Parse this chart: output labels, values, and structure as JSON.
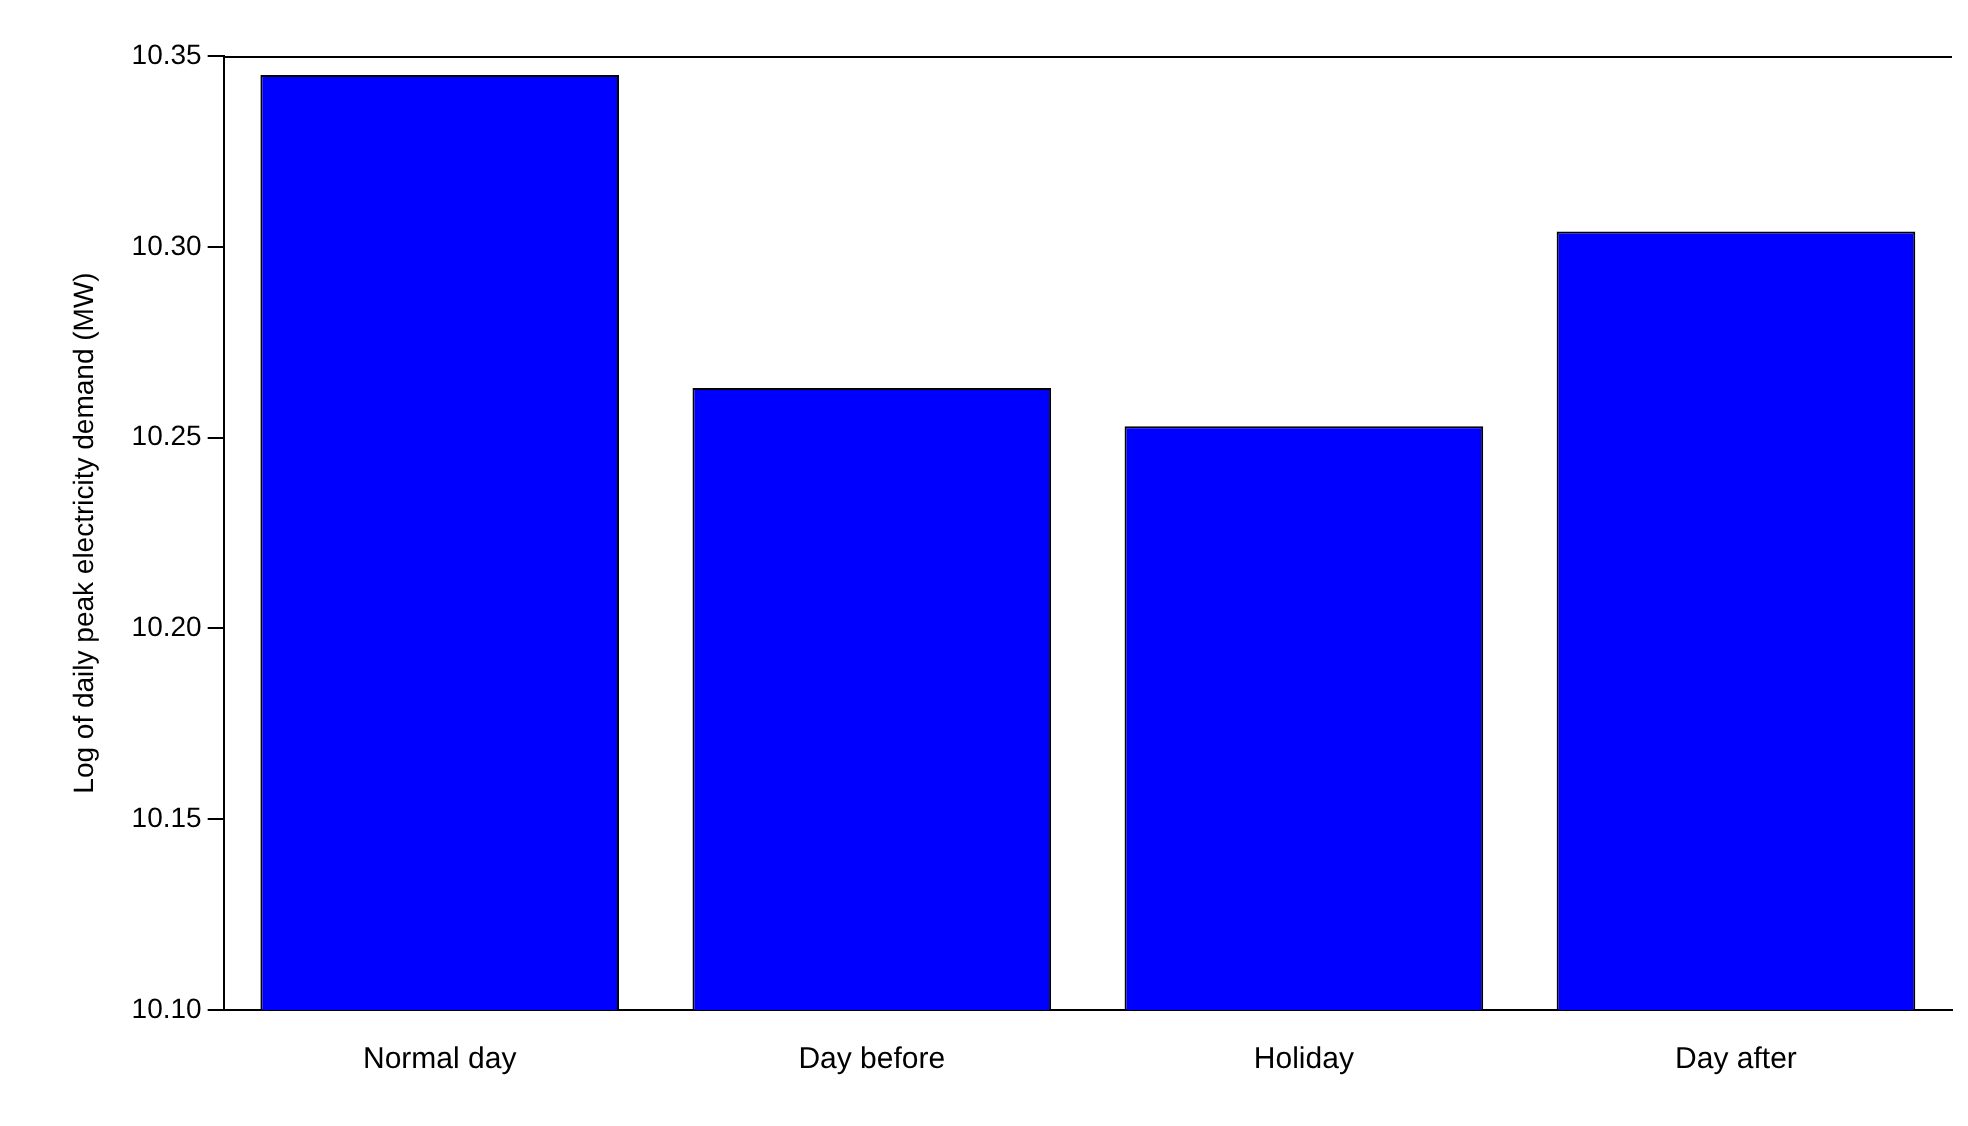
{
  "chart_data": {
    "type": "bar",
    "ylabel": "Log of daily peak electricity demand (MW)",
    "categories": [
      "Normal day",
      "Day before",
      "Holiday",
      "Day after"
    ],
    "values": [
      10.345,
      10.263,
      10.253,
      10.304
    ],
    "color": "#0000ff",
    "ylim": [
      10.1,
      10.35
    ],
    "yticks": [
      {
        "value": 10.1,
        "label": "10.10"
      },
      {
        "value": 10.15,
        "label": "10.15"
      },
      {
        "value": 10.2,
        "label": "10.20"
      },
      {
        "value": 10.25,
        "label": "10.25"
      },
      {
        "value": 10.3,
        "label": "10.30"
      },
      {
        "value": 10.35,
        "label": "10.35"
      }
    ],
    "grid": false,
    "legend": false
  }
}
